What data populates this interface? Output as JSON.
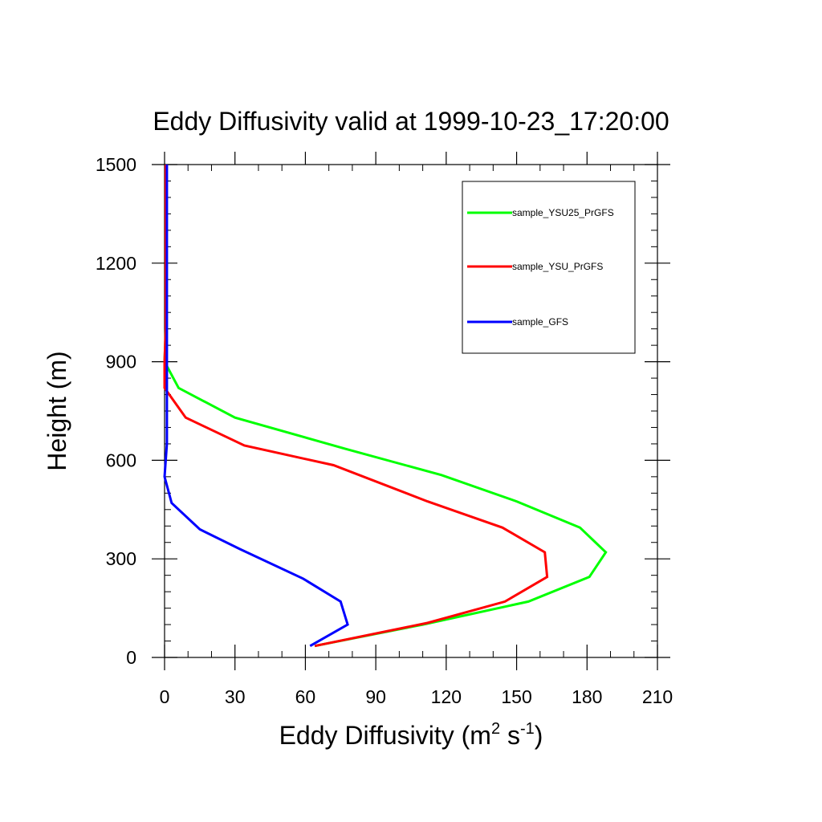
{
  "chart_data": {
    "type": "line",
    "title": "Eddy Diffusivity valid at 1999-10-23_17:20:00",
    "xlabel": {
      "main": "Eddy Diffusivity (m",
      "sup1": "2",
      "mid": " s",
      "sup2": "-1",
      "end": ")"
    },
    "ylabel": "Height (m)",
    "xlim": [
      0,
      210
    ],
    "ylim": [
      0,
      1500
    ],
    "x_ticks": [
      0,
      30,
      60,
      90,
      120,
      150,
      180,
      210
    ],
    "y_ticks": [
      0,
      300,
      600,
      900,
      1200,
      1500
    ],
    "x_tick_labels": [
      "0",
      "30",
      "60",
      "90",
      "120",
      "150",
      "180",
      "210"
    ],
    "y_tick_labels": [
      "0",
      "300",
      "600",
      "900",
      "1200",
      "1500"
    ],
    "x_minor_step": 10,
    "y_minor_step": 50,
    "grid": false,
    "legend_position": "top-right",
    "series": [
      {
        "name": "sample_YSU25_PrGFS",
        "color": "#00ff00",
        "points": [
          [
            64,
            35
          ],
          [
            110,
            100
          ],
          [
            155,
            170
          ],
          [
            181,
            245
          ],
          [
            188,
            320
          ],
          [
            177,
            395
          ],
          [
            150,
            475
          ],
          [
            118,
            555
          ],
          [
            77,
            635
          ],
          [
            30,
            730
          ],
          [
            6,
            820
          ],
          [
            0,
            900
          ],
          [
            0.5,
            1000
          ],
          [
            0.5,
            1200
          ],
          [
            0.5,
            1500
          ]
        ]
      },
      {
        "name": "sample_YSU_PrGFS",
        "color": "#ff0000",
        "points": [
          [
            64,
            35
          ],
          [
            112,
            105
          ],
          [
            145,
            170
          ],
          [
            163,
            245
          ],
          [
            162,
            320
          ],
          [
            144,
            395
          ],
          [
            112,
            475
          ],
          [
            72,
            585
          ],
          [
            34,
            645
          ],
          [
            9,
            730
          ],
          [
            0,
            820
          ],
          [
            0,
            900
          ],
          [
            0.5,
            1000
          ],
          [
            0.5,
            1200
          ],
          [
            0.5,
            1500
          ]
        ]
      },
      {
        "name": "sample_GFS",
        "color": "#0000ff",
        "points": [
          [
            62,
            35
          ],
          [
            78,
            100
          ],
          [
            75,
            170
          ],
          [
            59,
            240
          ],
          [
            32,
            330
          ],
          [
            15,
            390
          ],
          [
            3,
            470
          ],
          [
            0,
            550
          ],
          [
            1,
            650
          ],
          [
            1,
            800
          ],
          [
            1,
            900
          ],
          [
            1,
            1000
          ],
          [
            1,
            1200
          ],
          [
            1,
            1500
          ]
        ]
      }
    ]
  }
}
